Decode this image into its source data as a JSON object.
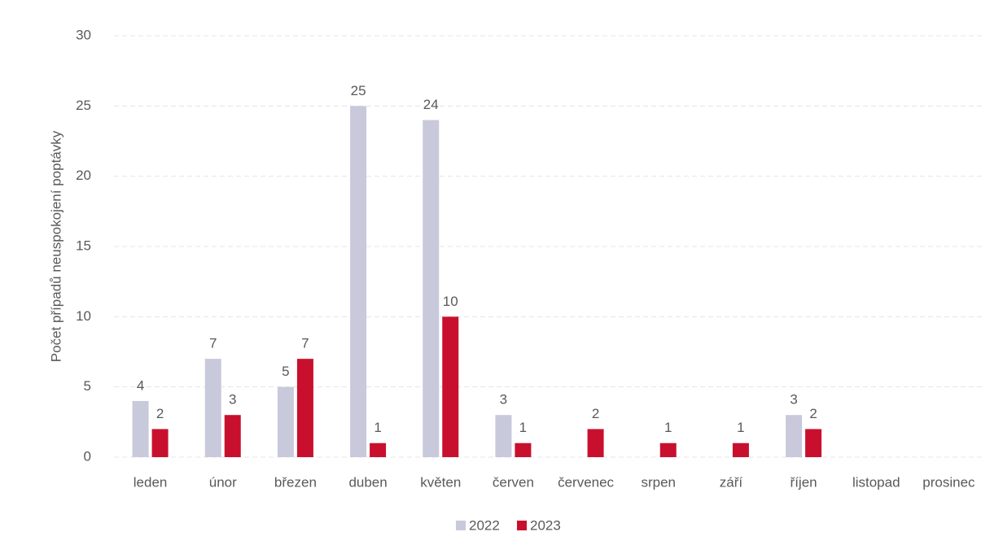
{
  "chart_data": {
    "type": "bar",
    "ylabel": "Počet případů neuspokojení poptávky",
    "categories": [
      "leden",
      "únor",
      "březen",
      "duben",
      "květen",
      "červen",
      "červenec",
      "srpen",
      "září",
      "říjen",
      "listopad",
      "prosinec"
    ],
    "series": [
      {
        "name": "2022",
        "color": "#c9c9dc",
        "values": [
          4,
          7,
          5,
          25,
          24,
          3,
          null,
          null,
          null,
          3,
          null,
          null
        ]
      },
      {
        "name": "2023",
        "color": "#c8102e",
        "values": [
          2,
          3,
          7,
          1,
          10,
          1,
          2,
          1,
          1,
          2,
          null,
          null
        ]
      }
    ],
    "ylim": [
      0,
      30
    ],
    "yticks": [
      0,
      5,
      10,
      15,
      20,
      25,
      30
    ],
    "grid": true,
    "legend": "bottom"
  }
}
